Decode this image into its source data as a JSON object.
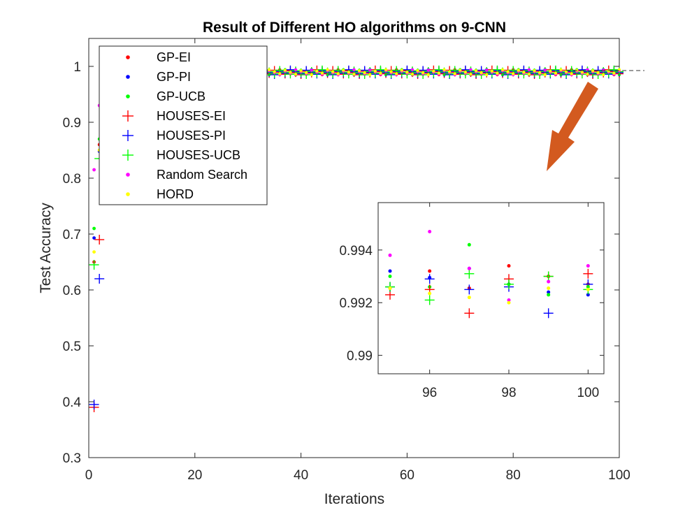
{
  "chart_data": {
    "type": "scatter",
    "title": "Result of Different HO algorithms on 9-CNN",
    "xlabel": "Iterations",
    "ylabel": "Test Accuracy",
    "xlim": [
      0,
      100
    ],
    "ylim": [
      0.3,
      1.05
    ],
    "xticks": [
      "0",
      "20",
      "40",
      "60",
      "80",
      "100"
    ],
    "yticks": [
      "0.3",
      "0.4",
      "0.5",
      "0.6",
      "0.7",
      "0.8",
      "0.9",
      "1"
    ],
    "legend_position": "top-left",
    "series": [
      {
        "name": "GP-EI",
        "color": "#ff0000",
        "marker": "dot",
        "points": [
          [
            1,
            0.65
          ],
          [
            2,
            0.86
          ],
          [
            3,
            0.93
          ],
          [
            4,
            0.96
          ],
          [
            5,
            0.972
          ],
          [
            6,
            0.978
          ],
          [
            8,
            0.982
          ],
          [
            10,
            0.984
          ]
        ]
      },
      {
        "name": "GP-PI",
        "color": "#0000ff",
        "marker": "dot",
        "points": [
          [
            1,
            0.693
          ],
          [
            2,
            0.848
          ],
          [
            3,
            0.92
          ],
          [
            4,
            0.95
          ],
          [
            5,
            0.968
          ],
          [
            6,
            0.976
          ],
          [
            8,
            0.982
          ],
          [
            10,
            0.984
          ]
        ]
      },
      {
        "name": "GP-UCB",
        "color": "#00ff00",
        "marker": "dot",
        "points": [
          [
            1,
            0.71
          ],
          [
            2,
            0.87
          ],
          [
            3,
            0.935
          ],
          [
            4,
            0.955
          ],
          [
            5,
            0.97
          ],
          [
            6,
            0.978
          ],
          [
            8,
            0.982
          ],
          [
            10,
            0.985
          ]
        ]
      },
      {
        "name": "HOUSES-EI",
        "color": "#ff0000",
        "marker": "plus",
        "points": [
          [
            1,
            0.39
          ],
          [
            2,
            0.69
          ],
          [
            3,
            0.9
          ],
          [
            4,
            0.95
          ],
          [
            5,
            0.97
          ],
          [
            6,
            0.977
          ],
          [
            8,
            0.982
          ],
          [
            10,
            0.984
          ]
        ]
      },
      {
        "name": "HOUSES-PI",
        "color": "#0000ff",
        "marker": "plus",
        "points": [
          [
            1,
            0.395
          ],
          [
            2,
            0.62
          ],
          [
            3,
            0.88
          ],
          [
            4,
            0.94
          ],
          [
            5,
            0.965
          ],
          [
            6,
            0.975
          ],
          [
            8,
            0.981
          ],
          [
            10,
            0.984
          ]
        ]
      },
      {
        "name": "HOUSES-UCB",
        "color": "#00ff00",
        "marker": "plus",
        "points": [
          [
            1,
            0.645
          ],
          [
            2,
            0.835
          ],
          [
            3,
            0.91
          ],
          [
            4,
            0.95
          ],
          [
            5,
            0.968
          ],
          [
            6,
            0.976
          ],
          [
            8,
            0.981
          ],
          [
            10,
            0.984
          ]
        ]
      },
      {
        "name": "Random Search",
        "color": "#ff00ff",
        "marker": "dot",
        "points": [
          [
            1,
            0.815
          ],
          [
            2,
            0.93
          ],
          [
            3,
            0.955
          ],
          [
            4,
            0.97
          ],
          [
            5,
            0.976
          ],
          [
            6,
            0.98
          ],
          [
            8,
            0.983
          ],
          [
            10,
            0.985
          ]
        ]
      },
      {
        "name": "HORD",
        "color": "#ffff00",
        "marker": "dot",
        "points": [
          [
            1,
            0.668
          ],
          [
            2,
            0.85
          ],
          [
            3,
            0.92
          ],
          [
            4,
            0.955
          ],
          [
            5,
            0.97
          ],
          [
            6,
            0.977
          ],
          [
            8,
            0.982
          ],
          [
            10,
            0.984
          ]
        ]
      }
    ],
    "inset": {
      "xlim": [
        94.7,
        100.4
      ],
      "ylim": [
        0.9893,
        0.9958
      ],
      "xticks": [
        "96",
        "98",
        "100"
      ],
      "yticks": [
        "0.99",
        "0.992",
        "0.994"
      ],
      "series": [
        {
          "name": "GP-EI",
          "values": [
            [
              95,
              0.99255
            ],
            [
              96,
              0.9932
            ],
            [
              97,
              0.99255
            ],
            [
              98,
              0.9934
            ],
            [
              99,
              0.993
            ],
            [
              100,
              0.9927
            ]
          ]
        },
        {
          "name": "GP-PI",
          "values": [
            [
              95,
              0.9932
            ],
            [
              96,
              0.99295
            ],
            [
              97,
              0.9933
            ],
            [
              98,
              0.9927
            ],
            [
              99,
              0.9924
            ],
            [
              100,
              0.9923
            ]
          ]
        },
        {
          "name": "GP-UCB",
          "values": [
            [
              95,
              0.993
            ],
            [
              96,
              0.9926
            ],
            [
              97,
              0.9942
            ],
            [
              98,
              0.9927
            ],
            [
              99,
              0.9923
            ],
            [
              100,
              0.9926
            ]
          ]
        },
        {
          "name": "HOUSES-EI",
          "values": [
            [
              95,
              0.9923
            ],
            [
              96,
              0.9925
            ],
            [
              97,
              0.9916
            ],
            [
              98,
              0.9929
            ],
            [
              99,
              0.993
            ],
            [
              100,
              0.9931
            ]
          ]
        },
        {
          "name": "HOUSES-PI",
          "values": [
            [
              95,
              0.9926
            ],
            [
              96,
              0.9929
            ],
            [
              97,
              0.9925
            ],
            [
              98,
              0.9926
            ],
            [
              99,
              0.9916
            ],
            [
              100,
              0.9927
            ]
          ]
        },
        {
          "name": "HOUSES-UCB",
          "values": [
            [
              95,
              0.9926
            ],
            [
              96,
              0.9921
            ],
            [
              97,
              0.9931
            ],
            [
              98,
              0.9927
            ],
            [
              99,
              0.993
            ],
            [
              100,
              0.9925
            ]
          ]
        },
        {
          "name": "Random Search",
          "values": [
            [
              95,
              0.9938
            ],
            [
              96,
              0.9947
            ],
            [
              97,
              0.9933
            ],
            [
              98,
              0.9921
            ],
            [
              99,
              0.9928
            ],
            [
              100,
              0.9934
            ]
          ]
        },
        {
          "name": "HORD",
          "values": [
            [
              95,
              0.99255
            ],
            [
              96,
              0.99235
            ],
            [
              97,
              0.9922
            ],
            [
              98,
              0.992
            ],
            [
              99,
              0.99255
            ],
            [
              100,
              0.9925
            ]
          ]
        }
      ]
    }
  }
}
